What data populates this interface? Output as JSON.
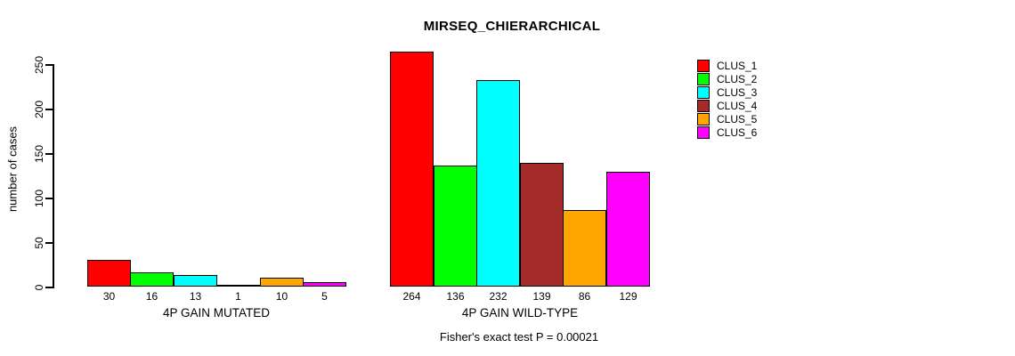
{
  "chart": {
    "title": "MIRSEQ_CHIERARCHICAL",
    "ylabel": "number of cases",
    "caption": "Fisher's exact test P = 0.00021"
  },
  "chart_data": {
    "type": "bar",
    "title": "MIRSEQ_CHIERARCHICAL",
    "ylabel": "number of cases",
    "xlabel": "",
    "caption": "Fisher's exact test P = 0.00021",
    "categories": [
      "4P GAIN MUTATED",
      "4P GAIN WILD-TYPE"
    ],
    "series": [
      {
        "name": "CLUS_1",
        "color": "#FF0000",
        "values": [
          30,
          264
        ]
      },
      {
        "name": "CLUS_2",
        "color": "#00FF00",
        "values": [
          16,
          136
        ]
      },
      {
        "name": "CLUS_3",
        "color": "#00FFFF",
        "values": [
          13,
          232
        ]
      },
      {
        "name": "CLUS_4",
        "color": "#A52A2A",
        "values": [
          1,
          139
        ]
      },
      {
        "name": "CLUS_5",
        "color": "#FFA500",
        "values": [
          10,
          86
        ]
      },
      {
        "name": "CLUS_6",
        "color": "#FF00FF",
        "values": [
          5,
          129
        ]
      }
    ],
    "bar_value_labels": [
      [
        "30",
        "16",
        "13",
        "1",
        "10",
        "5"
      ],
      [
        "264",
        "136",
        "232",
        "139",
        "86",
        "129"
      ]
    ],
    "yticks": [
      0,
      50,
      100,
      150,
      200,
      250
    ],
    "ylim": [
      0,
      265
    ],
    "grid": false,
    "legend_position": "top-right",
    "background": "#FFFFFF",
    "axis_color": "#000000"
  }
}
